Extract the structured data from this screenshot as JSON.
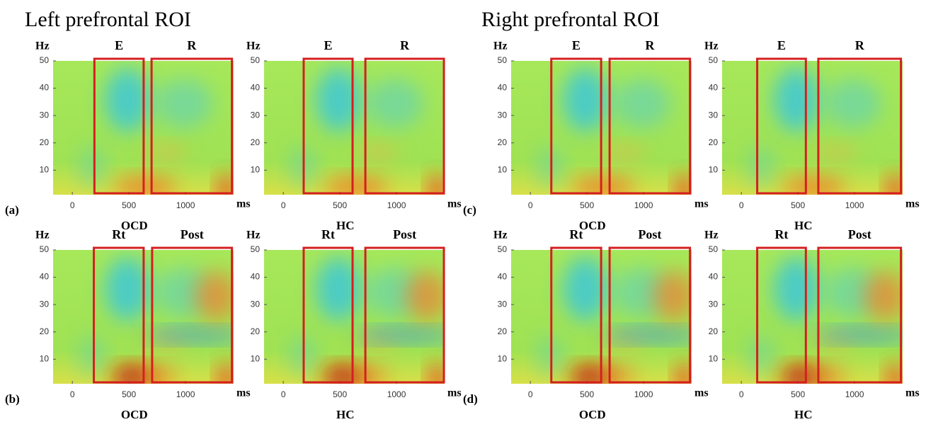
{
  "figure": {
    "titles": [
      "Left prefrontal ROI",
      "Right prefrontal ROI"
    ]
  },
  "chart_data": [
    {
      "type": "heatmap",
      "panel_label": "(a)",
      "group": "OCD",
      "x_label": "ms",
      "y_label": "Hz",
      "xlim": [
        -170,
        1425
      ],
      "ylim": [
        1,
        50
      ],
      "xticks": [
        0,
        500,
        1000
      ],
      "yticks": [
        10,
        20,
        30,
        40,
        50
      ],
      "windows": [
        {
          "label": "E",
          "range": [
            195,
            630
          ]
        },
        {
          "label": "R",
          "range": [
            700,
            1410
          ]
        }
      ]
    },
    {
      "type": "heatmap",
      "group": "HC",
      "x_label": "ms",
      "y_label": "Hz",
      "xlim": [
        -170,
        1425
      ],
      "ylim": [
        1,
        50
      ],
      "xticks": [
        0,
        500,
        1000
      ],
      "yticks": [
        10,
        20,
        30,
        40,
        50
      ],
      "windows": [
        {
          "label": "E",
          "range": [
            180,
            612
          ]
        },
        {
          "label": "R",
          "range": [
            725,
            1419
          ]
        }
      ]
    },
    {
      "type": "heatmap",
      "panel_label": "(c)",
      "group": "OCD",
      "x_label": "ms",
      "y_label": "Hz",
      "xlim": [
        -170,
        1425
      ],
      "ylim": [
        1,
        50
      ],
      "xticks": [
        0,
        500,
        1000
      ],
      "yticks": [
        10,
        20,
        30,
        40,
        50
      ],
      "windows": [
        {
          "label": "E",
          "range": [
            185,
            625
          ]
        },
        {
          "label": "R",
          "range": [
            700,
            1410
          ]
        }
      ]
    },
    {
      "type": "heatmap",
      "group": "HC",
      "x_label": "ms",
      "y_label": "Hz",
      "xlim": [
        -170,
        1425
      ],
      "ylim": [
        1,
        50
      ],
      "xticks": [
        0,
        500,
        1000
      ],
      "yticks": [
        10,
        20,
        30,
        40,
        50
      ],
      "windows": [
        {
          "label": "E",
          "range": [
            140,
            570
          ]
        },
        {
          "label": "R",
          "range": [
            680,
            1410
          ]
        }
      ]
    },
    {
      "type": "heatmap",
      "panel_label": "(b)",
      "group": "OCD",
      "x_label": "ms",
      "y_label": "Hz",
      "xlim": [
        -170,
        1425
      ],
      "ylim": [
        1,
        50
      ],
      "xticks": [
        0,
        500,
        1000
      ],
      "yticks": [
        10,
        20,
        30,
        40,
        50
      ],
      "windows": [
        {
          "label": "Rt",
          "range": [
            190,
            630
          ]
        },
        {
          "label": "Post",
          "range": [
            705,
            1410
          ]
        }
      ]
    },
    {
      "type": "heatmap",
      "group": "HC",
      "x_label": "ms",
      "y_label": "Hz",
      "xlim": [
        -170,
        1425
      ],
      "ylim": [
        1,
        50
      ],
      "xticks": [
        0,
        500,
        1000
      ],
      "yticks": [
        10,
        20,
        30,
        40,
        50
      ],
      "windows": [
        {
          "label": "Rt",
          "range": [
            180,
            612
          ]
        },
        {
          "label": "Post",
          "range": [
            725,
            1419
          ]
        }
      ]
    },
    {
      "type": "heatmap",
      "panel_label": "(d)",
      "group": "OCD",
      "x_label": "ms",
      "y_label": "Hz",
      "xlim": [
        -170,
        1425
      ],
      "ylim": [
        1,
        50
      ],
      "xticks": [
        0,
        500,
        1000
      ],
      "yticks": [
        10,
        20,
        30,
        40,
        50
      ],
      "windows": [
        {
          "label": "Rt",
          "range": [
            185,
            625
          ]
        },
        {
          "label": "Post",
          "range": [
            700,
            1410
          ]
        }
      ]
    },
    {
      "type": "heatmap",
      "group": "HC",
      "x_label": "ms",
      "y_label": "Hz",
      "xlim": [
        -170,
        1425
      ],
      "ylim": [
        1,
        50
      ],
      "xticks": [
        0,
        500,
        1000
      ],
      "yticks": [
        10,
        20,
        30,
        40,
        50
      ],
      "windows": [
        {
          "label": "Rt",
          "range": [
            140,
            570
          ]
        },
        {
          "label": "Post",
          "range": [
            680,
            1410
          ]
        }
      ]
    }
  ]
}
